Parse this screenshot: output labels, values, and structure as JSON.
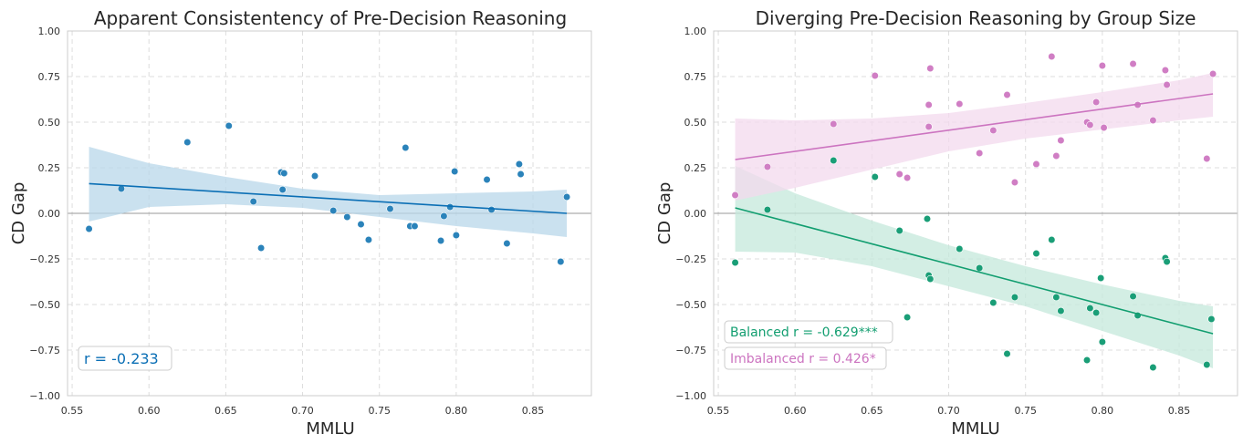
{
  "chart_data": [
    {
      "type": "scatter",
      "title": "Apparent Consistentency of Pre-Decision Reasoning",
      "xlabel": "MMLU",
      "ylabel": "CD Gap",
      "xlim": [
        0.547,
        0.888
      ],
      "ylim": [
        -1.0,
        1.0
      ],
      "xticks": [
        "0.55",
        "0.60",
        "0.65",
        "0.70",
        "0.75",
        "0.80",
        "0.85"
      ],
      "yticks": [
        "−1.00",
        "−0.75",
        "−0.50",
        "−0.25",
        "0.00",
        "0.25",
        "0.50",
        "0.75",
        "1.00"
      ],
      "grid": true,
      "series": [
        {
          "color": "#2b83ba",
          "points": [
            [
              0.561,
              -0.085
            ],
            [
              0.582,
              0.135
            ],
            [
              0.625,
              0.39
            ],
            [
              0.652,
              0.48
            ],
            [
              0.668,
              0.065
            ],
            [
              0.673,
              -0.19
            ],
            [
              0.686,
              0.225
            ],
            [
              0.688,
              0.22
            ],
            [
              0.687,
              0.13
            ],
            [
              0.708,
              0.205
            ],
            [
              0.72,
              0.015
            ],
            [
              0.729,
              -0.02
            ],
            [
              0.738,
              -0.06
            ],
            [
              0.743,
              -0.145
            ],
            [
              0.757,
              0.025
            ],
            [
              0.767,
              0.36
            ],
            [
              0.77,
              -0.07
            ],
            [
              0.773,
              -0.07
            ],
            [
              0.79,
              -0.15
            ],
            [
              0.792,
              -0.015
            ],
            [
              0.796,
              0.035
            ],
            [
              0.799,
              0.23
            ],
            [
              0.8,
              -0.12
            ],
            [
              0.82,
              0.185
            ],
            [
              0.823,
              0.02
            ],
            [
              0.833,
              -0.165
            ],
            [
              0.841,
              0.27
            ],
            [
              0.842,
              0.215
            ],
            [
              0.868,
              -0.265
            ],
            [
              0.872,
              0.09
            ]
          ],
          "fit": [
            [
              0.561,
              0.163
            ],
            [
              0.872,
              0.0
            ]
          ],
          "band_upper": [
            [
              0.561,
              0.365
            ],
            [
              0.6,
              0.275
            ],
            [
              0.65,
              0.2
            ],
            [
              0.7,
              0.135
            ],
            [
              0.75,
              0.1
            ],
            [
              0.8,
              0.11
            ],
            [
              0.85,
              0.12
            ],
            [
              0.872,
              0.13
            ]
          ],
          "band_lower": [
            [
              0.561,
              -0.045
            ],
            [
              0.6,
              0.035
            ],
            [
              0.65,
              0.05
            ],
            [
              0.7,
              0.03
            ],
            [
              0.75,
              -0.02
            ],
            [
              0.8,
              -0.07
            ],
            [
              0.85,
              -0.11
            ],
            [
              0.872,
              -0.13
            ]
          ],
          "band_color": "#b8d7ea",
          "line_color": "#0b6fb5"
        }
      ],
      "annotations": [
        {
          "text": "r = -0.233",
          "color": "#0b6fb5"
        }
      ]
    },
    {
      "type": "scatter",
      "title": "Diverging Pre-Decision Reasoning by Group Size",
      "xlabel": "MMLU",
      "ylabel": "CD Gap",
      "xlim": [
        0.547,
        0.888
      ],
      "ylim": [
        -1.0,
        1.0
      ],
      "xticks": [
        "0.55",
        "0.60",
        "0.65",
        "0.70",
        "0.75",
        "0.80",
        "0.85"
      ],
      "yticks": [
        "−1.00",
        "−0.75",
        "−0.50",
        "−0.25",
        "0.00",
        "0.25",
        "0.50",
        "0.75",
        "1.00"
      ],
      "grid": true,
      "series": [
        {
          "color": "#1a9e77",
          "points": [
            [
              0.561,
              -0.27
            ],
            [
              0.582,
              0.02
            ],
            [
              0.625,
              0.29
            ],
            [
              0.652,
              0.2
            ],
            [
              0.668,
              -0.095
            ],
            [
              0.673,
              -0.57
            ],
            [
              0.686,
              -0.03
            ],
            [
              0.687,
              -0.34
            ],
            [
              0.688,
              -0.36
            ],
            [
              0.707,
              -0.195
            ],
            [
              0.72,
              -0.3
            ],
            [
              0.729,
              -0.49
            ],
            [
              0.738,
              -0.77
            ],
            [
              0.743,
              -0.46
            ],
            [
              0.757,
              -0.22
            ],
            [
              0.767,
              -0.145
            ],
            [
              0.77,
              -0.46
            ],
            [
              0.773,
              -0.535
            ],
            [
              0.79,
              -0.805
            ],
            [
              0.792,
              -0.52
            ],
            [
              0.796,
              -0.545
            ],
            [
              0.799,
              -0.355
            ],
            [
              0.8,
              -0.705
            ],
            [
              0.82,
              -0.455
            ],
            [
              0.823,
              -0.56
            ],
            [
              0.833,
              -0.845
            ],
            [
              0.841,
              -0.245
            ],
            [
              0.842,
              -0.265
            ],
            [
              0.868,
              -0.83
            ],
            [
              0.871,
              -0.58
            ]
          ],
          "fit": [
            [
              0.561,
              0.03
            ],
            [
              0.872,
              -0.66
            ]
          ],
          "band_upper": [
            [
              0.561,
              0.26
            ],
            [
              0.6,
              0.11
            ],
            [
              0.65,
              -0.04
            ],
            [
              0.7,
              -0.175
            ],
            [
              0.75,
              -0.29
            ],
            [
              0.8,
              -0.39
            ],
            [
              0.85,
              -0.48
            ],
            [
              0.872,
              -0.51
            ]
          ],
          "band_lower": [
            [
              0.561,
              -0.21
            ],
            [
              0.6,
              -0.215
            ],
            [
              0.65,
              -0.29
            ],
            [
              0.7,
              -0.4
            ],
            [
              0.75,
              -0.51
            ],
            [
              0.8,
              -0.645
            ],
            [
              0.85,
              -0.78
            ],
            [
              0.872,
              -0.85
            ]
          ],
          "band_color": "#c4e8db",
          "line_color": "#129e70"
        },
        {
          "color": "#d07ec4",
          "points": [
            [
              0.561,
              0.1
            ],
            [
              0.582,
              0.255
            ],
            [
              0.625,
              0.49
            ],
            [
              0.652,
              0.755
            ],
            [
              0.668,
              0.215
            ],
            [
              0.673,
              0.195
            ],
            [
              0.687,
              0.475
            ],
            [
              0.687,
              0.595
            ],
            [
              0.688,
              0.795
            ],
            [
              0.707,
              0.6
            ],
            [
              0.72,
              0.33
            ],
            [
              0.729,
              0.455
            ],
            [
              0.738,
              0.65
            ],
            [
              0.743,
              0.17
            ],
            [
              0.757,
              0.27
            ],
            [
              0.767,
              0.86
            ],
            [
              0.77,
              0.315
            ],
            [
              0.773,
              0.4
            ],
            [
              0.79,
              0.5
            ],
            [
              0.792,
              0.485
            ],
            [
              0.796,
              0.61
            ],
            [
              0.8,
              0.81
            ],
            [
              0.801,
              0.47
            ],
            [
              0.82,
              0.82
            ],
            [
              0.823,
              0.595
            ],
            [
              0.833,
              0.51
            ],
            [
              0.841,
              0.785
            ],
            [
              0.842,
              0.705
            ],
            [
              0.868,
              0.3
            ],
            [
              0.872,
              0.765
            ]
          ],
          "fit": [
            [
              0.561,
              0.295
            ],
            [
              0.872,
              0.655
            ]
          ],
          "band_upper": [
            [
              0.561,
              0.52
            ],
            [
              0.6,
              0.51
            ],
            [
              0.65,
              0.52
            ],
            [
              0.7,
              0.55
            ],
            [
              0.75,
              0.605
            ],
            [
              0.8,
              0.665
            ],
            [
              0.85,
              0.73
            ],
            [
              0.872,
              0.77
            ]
          ],
          "band_lower": [
            [
              0.561,
              0.07
            ],
            [
              0.6,
              0.14
            ],
            [
              0.65,
              0.24
            ],
            [
              0.7,
              0.34
            ],
            [
              0.75,
              0.41
            ],
            [
              0.8,
              0.46
            ],
            [
              0.85,
              0.51
            ],
            [
              0.872,
              0.53
            ]
          ],
          "band_color": "#f3d9ee",
          "line_color": "#cc74c0"
        }
      ],
      "annotations": [
        {
          "text": "Balanced r = -0.629***",
          "color": "#129e70"
        },
        {
          "text": "Imbalanced r = 0.426*",
          "color": "#cc74c0"
        }
      ]
    }
  ]
}
